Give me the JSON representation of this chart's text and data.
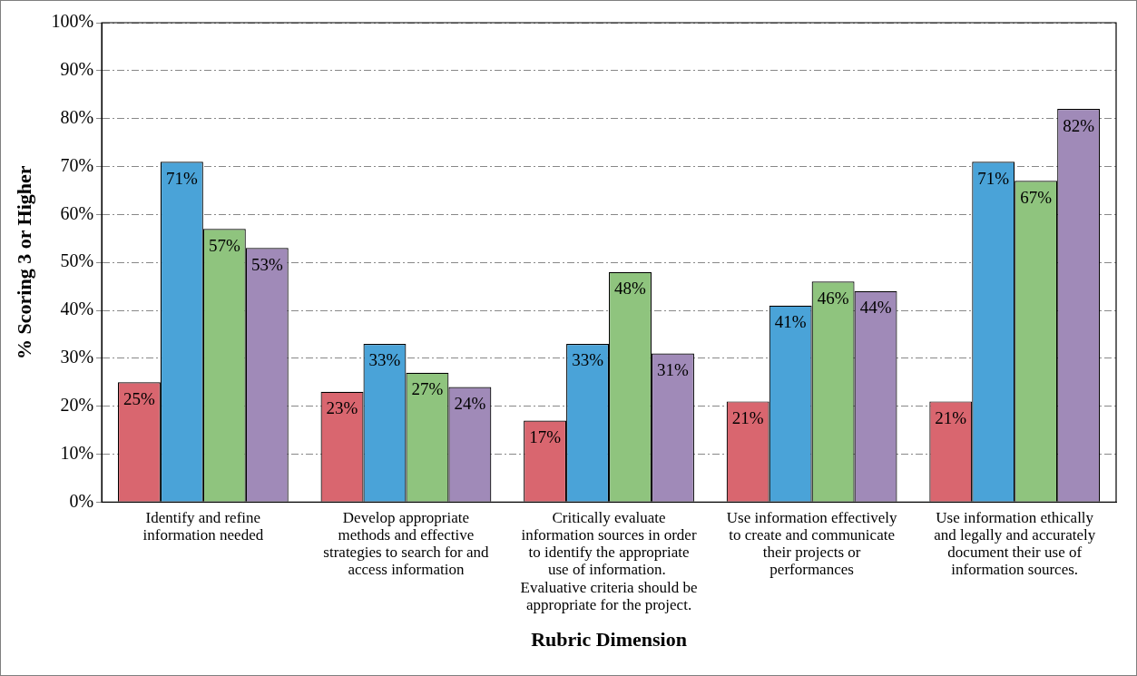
{
  "chart_data": {
    "type": "bar",
    "xlabel": "Rubric Dimension",
    "ylabel": "% Scoring 3 or Higher",
    "categories": [
      "Identify and refine information needed",
      "Develop appropriate methods and effective strategies to search for and access information",
      "Critically evaluate information sources in order to identify the appropriate use of information.  Evaluative criteria should be appropriate for the project.",
      "Use information effectively to create and communicate their projects or performances",
      "Use information ethically and legally and accurately document their use of information sources."
    ],
    "series": [
      {
        "color": "#d9666f",
        "values": [
          25,
          23,
          17,
          21,
          21
        ],
        "value_labels": [
          "25%",
          "23%",
          "17%",
          "21%",
          "21%"
        ]
      },
      {
        "color": "#4aa3d8",
        "values": [
          71,
          33,
          33,
          41,
          71
        ],
        "value_labels": [
          "71%",
          "33%",
          "33%",
          "41%",
          "71%"
        ]
      },
      {
        "color": "#8fc47e",
        "values": [
          57,
          27,
          48,
          46,
          67
        ],
        "value_labels": [
          "57%",
          "27%",
          "48%",
          "46%",
          "67%"
        ]
      },
      {
        "color": "#a08ab8",
        "values": [
          53,
          24,
          31,
          44,
          82
        ],
        "value_labels": [
          "53%",
          "24%",
          "31%",
          "44%",
          "82%"
        ]
      }
    ],
    "ylim": [
      0,
      100
    ],
    "yticks": [
      {
        "value": 0,
        "label": "0%"
      },
      {
        "value": 10,
        "label": "10%"
      },
      {
        "value": 20,
        "label": "20%"
      },
      {
        "value": 30,
        "label": "30%"
      },
      {
        "value": 40,
        "label": "40%"
      },
      {
        "value": 50,
        "label": "50%"
      },
      {
        "value": 60,
        "label": "60%"
      },
      {
        "value": 70,
        "label": "70%"
      },
      {
        "value": 80,
        "label": "80%"
      },
      {
        "value": 90,
        "label": "90%"
      },
      {
        "value": 100,
        "label": "100%"
      }
    ],
    "grid": "y",
    "legend": false
  }
}
